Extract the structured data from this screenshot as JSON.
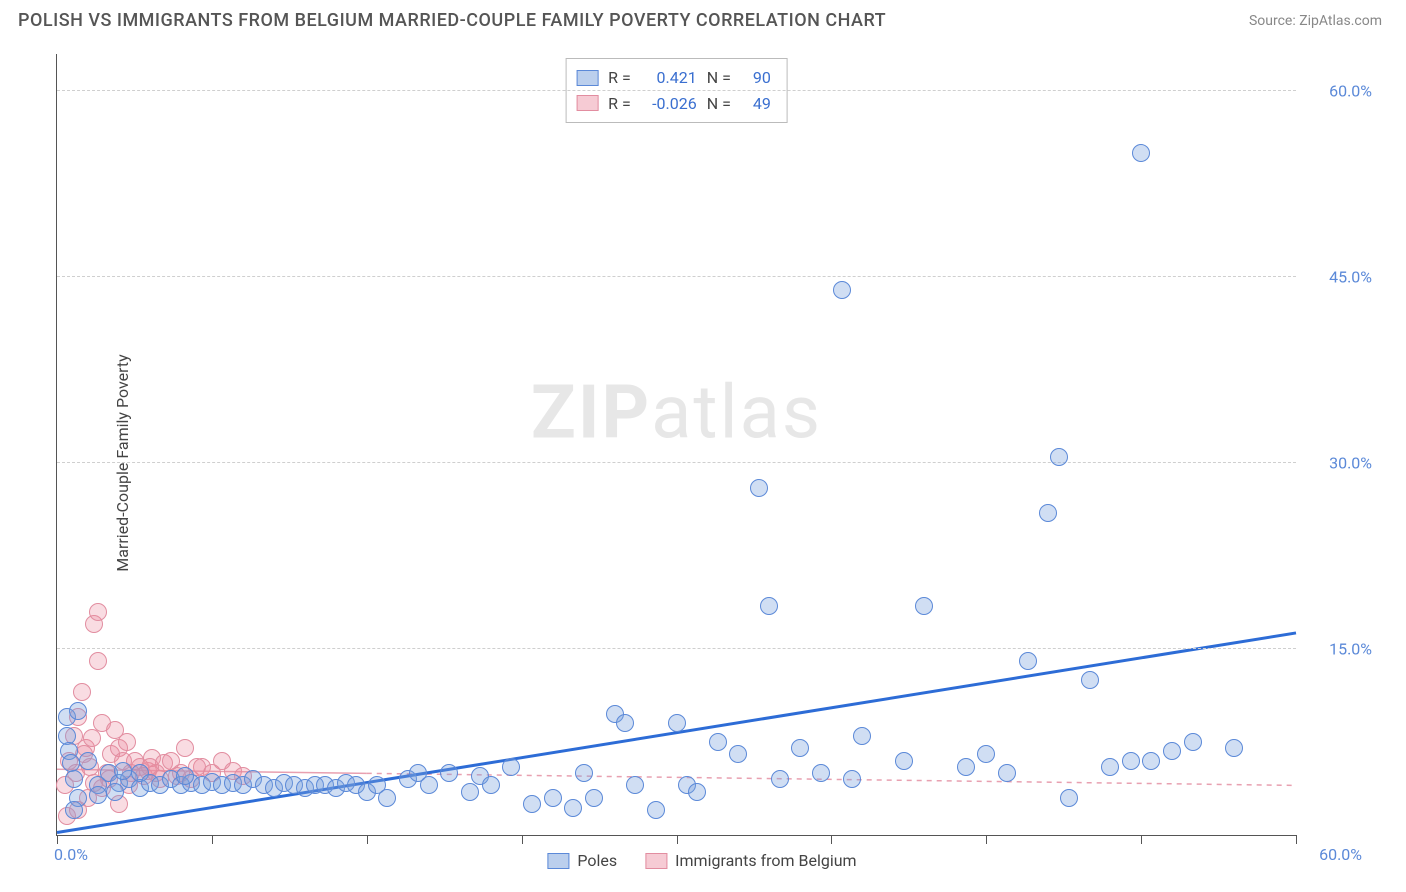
{
  "header": {
    "title": "POLISH VS IMMIGRANTS FROM BELGIUM MARRIED-COUPLE FAMILY POVERTY CORRELATION CHART",
    "source": "Source: ZipAtlas.com"
  },
  "chart": {
    "type": "scatter",
    "ylabel": "Married-Couple Family Poverty",
    "watermark": {
      "bold": "ZIP",
      "rest": "atlas"
    },
    "background_color": "#ffffff",
    "grid_color": "#cfcfcf",
    "axis_color": "#555555",
    "label_color": "#5b89d8",
    "xlim": [
      0,
      60
    ],
    "ylim": [
      0,
      63
    ],
    "xticks": [
      0,
      7.5,
      15,
      22.5,
      30,
      37.5,
      45,
      52.5,
      60
    ],
    "yticks": [
      15,
      30,
      45,
      60
    ],
    "ytick_labels": [
      "15.0%",
      "30.0%",
      "45.0%",
      "60.0%"
    ],
    "x_min_label": "0.0%",
    "x_max_label": "60.0%",
    "point_radius": 9,
    "series": {
      "blue": {
        "name": "Poles",
        "fill": "rgba(120,160,220,0.35)",
        "stroke": "#5b89d8",
        "R": "0.421",
        "N": "90",
        "trend": {
          "x1": 0,
          "y1": 0.2,
          "x2": 60,
          "y2": 16.3,
          "stroke": "#2d6cd6",
          "width": 3,
          "dash": "none"
        },
        "points": [
          [
            0.5,
            9.5
          ],
          [
            0.5,
            8.0
          ],
          [
            0.6,
            6.8
          ],
          [
            0.7,
            5.8
          ],
          [
            0.8,
            4.5
          ],
          [
            1.0,
            10.0
          ],
          [
            1.0,
            3.0
          ],
          [
            2.0,
            4.0
          ],
          [
            2.0,
            3.2
          ],
          [
            2.5,
            5.0
          ],
          [
            3.0,
            4.2
          ],
          [
            3.5,
            4.5
          ],
          [
            4.0,
            3.8
          ],
          [
            4.0,
            5.0
          ],
          [
            4.5,
            4.2
          ],
          [
            5.0,
            4.0
          ],
          [
            5.5,
            4.5
          ],
          [
            6.0,
            4.0
          ],
          [
            6.5,
            4.2
          ],
          [
            7.0,
            4.0
          ],
          [
            7.5,
            4.3
          ],
          [
            8.0,
            4.0
          ],
          [
            8.5,
            4.2
          ],
          [
            9.0,
            4.0
          ],
          [
            9.5,
            4.5
          ],
          [
            10.0,
            4.0
          ],
          [
            10.5,
            3.8
          ],
          [
            11.0,
            4.2
          ],
          [
            11.5,
            4.0
          ],
          [
            12.0,
            3.8
          ],
          [
            12.5,
            4.0
          ],
          [
            13.0,
            4.0
          ],
          [
            13.5,
            3.8
          ],
          [
            14.0,
            4.2
          ],
          [
            14.5,
            4.0
          ],
          [
            15.0,
            3.5
          ],
          [
            15.5,
            4.0
          ],
          [
            16.0,
            3.0
          ],
          [
            17.0,
            4.5
          ],
          [
            17.5,
            5.0
          ],
          [
            18.0,
            4.0
          ],
          [
            19.0,
            5.0
          ],
          [
            20.0,
            3.5
          ],
          [
            20.5,
            4.8
          ],
          [
            21.0,
            4.0
          ],
          [
            22.0,
            5.5
          ],
          [
            23.0,
            2.5
          ],
          [
            24.0,
            3.0
          ],
          [
            25.0,
            2.2
          ],
          [
            25.5,
            5.0
          ],
          [
            26.0,
            3.0
          ],
          [
            27.0,
            9.8
          ],
          [
            27.5,
            9.0
          ],
          [
            28.0,
            4.0
          ],
          [
            29.0,
            2.0
          ],
          [
            30.0,
            9.0
          ],
          [
            30.5,
            4.0
          ],
          [
            31.0,
            3.5
          ],
          [
            32.0,
            7.5
          ],
          [
            33.0,
            6.5
          ],
          [
            34.0,
            28.0
          ],
          [
            34.5,
            18.5
          ],
          [
            35.0,
            4.5
          ],
          [
            36.0,
            7.0
          ],
          [
            37.0,
            5.0
          ],
          [
            38.0,
            44.0
          ],
          [
            38.5,
            4.5
          ],
          [
            39.0,
            8.0
          ],
          [
            41.0,
            6.0
          ],
          [
            42.0,
            18.5
          ],
          [
            44.0,
            5.5
          ],
          [
            45.0,
            6.5
          ],
          [
            46.0,
            5.0
          ],
          [
            47.0,
            14.0
          ],
          [
            48.0,
            26.0
          ],
          [
            48.5,
            30.5
          ],
          [
            49.0,
            3.0
          ],
          [
            50.0,
            12.5
          ],
          [
            51.0,
            5.5
          ],
          [
            52.0,
            6.0
          ],
          [
            52.5,
            55.0
          ],
          [
            53.0,
            6.0
          ],
          [
            54.0,
            6.8
          ],
          [
            55.0,
            7.5
          ],
          [
            57.0,
            7.0
          ],
          [
            0.8,
            2.0
          ],
          [
            1.5,
            6.0
          ],
          [
            2.8,
            3.5
          ],
          [
            3.2,
            5.2
          ],
          [
            6.2,
            4.8
          ]
        ]
      },
      "pink": {
        "name": "Immigrants from Belgium",
        "fill": "rgba(235,140,160,0.3)",
        "stroke": "#e28da0",
        "R": "-0.026",
        "N": "49",
        "trend": {
          "x1": 0,
          "y1": 5.3,
          "x2": 60,
          "y2": 4.0,
          "stroke": "#e8a0b0",
          "width": 1.5,
          "dash": "5,5",
          "solid_until_x": 15
        },
        "points": [
          [
            0.4,
            4.0
          ],
          [
            0.6,
            6.0
          ],
          [
            0.8,
            8.0
          ],
          [
            1.0,
            9.5
          ],
          [
            1.2,
            11.5
          ],
          [
            1.4,
            7.0
          ],
          [
            1.6,
            5.5
          ],
          [
            1.8,
            17.0
          ],
          [
            2.0,
            14.0
          ],
          [
            2.0,
            18.0
          ],
          [
            2.2,
            9.0
          ],
          [
            2.4,
            5.0
          ],
          [
            2.6,
            6.5
          ],
          [
            2.8,
            8.5
          ],
          [
            3.0,
            7.0
          ],
          [
            3.0,
            2.5
          ],
          [
            3.2,
            6.0
          ],
          [
            3.4,
            7.5
          ],
          [
            3.6,
            5.0
          ],
          [
            3.8,
            6.0
          ],
          [
            4.0,
            5.5
          ],
          [
            4.2,
            4.8
          ],
          [
            4.4,
            5.2
          ],
          [
            4.6,
            6.2
          ],
          [
            4.8,
            5.0
          ],
          [
            5.0,
            4.5
          ],
          [
            5.2,
            5.8
          ],
          [
            5.5,
            6.0
          ],
          [
            6.0,
            5.0
          ],
          [
            6.2,
            7.0
          ],
          [
            6.5,
            4.5
          ],
          [
            7.0,
            5.5
          ],
          [
            7.5,
            5.0
          ],
          [
            8.0,
            6.0
          ],
          [
            8.5,
            5.2
          ],
          [
            9.0,
            4.8
          ],
          [
            1.0,
            2.0
          ],
          [
            1.5,
            3.0
          ],
          [
            0.5,
            1.5
          ],
          [
            2.5,
            4.5
          ],
          [
            3.5,
            4.0
          ],
          [
            1.8,
            4.2
          ],
          [
            2.2,
            3.8
          ],
          [
            0.9,
            5.0
          ],
          [
            1.3,
            6.5
          ],
          [
            1.7,
            7.8
          ],
          [
            4.5,
            5.5
          ],
          [
            5.8,
            4.8
          ],
          [
            6.8,
            5.5
          ]
        ]
      }
    },
    "stats_box": {
      "rows": [
        {
          "swatch": "blue",
          "r_label": "R =",
          "r_val": "0.421",
          "n_label": "N =",
          "n_val": "90"
        },
        {
          "swatch": "pink",
          "r_label": "R =",
          "r_val": "-0.026",
          "n_label": "N =",
          "n_val": "49"
        }
      ]
    },
    "bottom_legend": [
      {
        "swatch": "blue",
        "label": "Poles"
      },
      {
        "swatch": "pink",
        "label": "Immigrants from Belgium"
      }
    ]
  }
}
